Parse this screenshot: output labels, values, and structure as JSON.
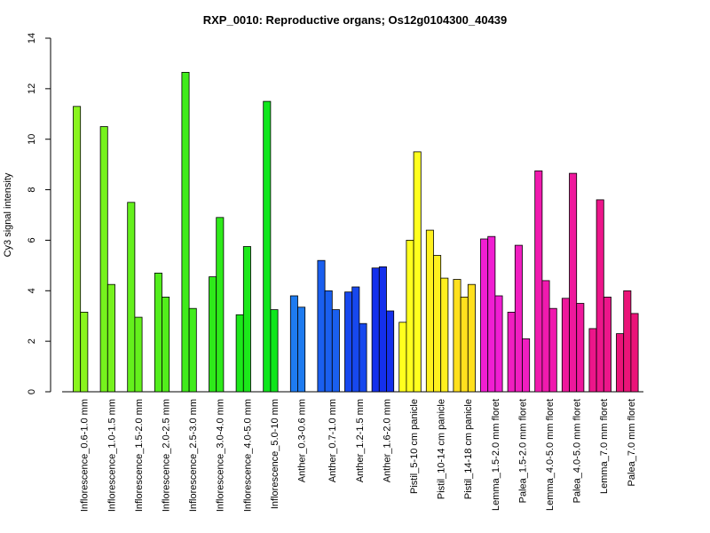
{
  "chart_data": {
    "type": "bar",
    "title": "RXP_0010: Reproductive organs; Os12g0104300_40439",
    "ylabel": "Cy3 signal intensity",
    "xlabel": "",
    "ylim": [
      0,
      14
    ],
    "yticks": [
      0,
      2,
      4,
      6,
      8,
      10,
      12,
      14
    ],
    "grid": false,
    "legend": "none",
    "categories": [
      "Inflorescence_0.6-1.0 mm",
      "Inflorescence_1.0-1.5 mm",
      "Inflorescence_1.5-2.0 mm",
      "Inflorescence_2.0-2.5 mm",
      "Inflorescence_2.5-3.0 mm",
      "Inflorescence_3.0-4.0 mm",
      "Inflorescence_4.0-5.0 mm",
      "Inflorescence_5.0-10 mm",
      "Anther_0.3-0.6 mm",
      "Anther_0.7-1.0 mm",
      "Anther_1.2-1.5 mm",
      "Anther_1.6-2.0 mm",
      "Pistil_5-10 cm panicle",
      "Pistil_10-14 cm panicle",
      "Pistil_14-18 cm panicle",
      "Lemma_1.5-2.0 mm floret",
      "Palea_1.5-2.0 mm floret",
      "Lemma_4.0-5.0 mm floret",
      "Palea_4.0-5.0 mm floret",
      "Lemma_7.0 mm floret",
      "Palea_7.0 mm floret"
    ],
    "groups": [
      {
        "values": [
          11.3,
          3.15
        ],
        "colors": [
          "#8AF51E",
          "#8AF51E"
        ]
      },
      {
        "values": [
          10.5,
          4.25
        ],
        "colors": [
          "#76F21D",
          "#76F21D"
        ]
      },
      {
        "values": [
          7.5,
          2.95
        ],
        "colors": [
          "#64F01C",
          "#64F01C"
        ]
      },
      {
        "values": [
          4.7,
          3.75
        ],
        "colors": [
          "#52EE1C",
          "#52EE1C"
        ]
      },
      {
        "values": [
          12.65,
          3.3
        ],
        "colors": [
          "#40EC1B",
          "#40EC1B"
        ]
      },
      {
        "values": [
          4.55,
          6.9
        ],
        "colors": [
          "#2EEA1A",
          "#2EEA1A"
        ]
      },
      {
        "values": [
          3.05,
          5.75
        ],
        "colors": [
          "#1CE81A",
          "#1CE81A"
        ]
      },
      {
        "values": [
          11.5,
          3.25
        ],
        "colors": [
          "#0FE61C",
          "#0FE61C"
        ]
      },
      {
        "values": [
          3.8,
          3.35
        ],
        "colors": [
          "#1E7BF0",
          "#1E7BF0"
        ]
      },
      {
        "values": [
          5.2,
          4.0,
          3.25
        ],
        "colors": [
          "#1A5FEF",
          "#1A5FEF",
          "#1A5FEF"
        ]
      },
      {
        "values": [
          3.95,
          4.15,
          2.7
        ],
        "colors": [
          "#1748EE",
          "#1748EE",
          "#1748EE"
        ]
      },
      {
        "values": [
          4.9,
          4.95,
          3.2
        ],
        "colors": [
          "#1430EC",
          "#1430EC",
          "#1430EC"
        ]
      },
      {
        "values": [
          2.75,
          6.0,
          9.5
        ],
        "colors": [
          "#FFFF1E",
          "#FFFF1E",
          "#FFFF1E"
        ]
      },
      {
        "values": [
          6.4,
          5.4,
          4.5
        ],
        "colors": [
          "#FFF01E",
          "#FFF01E",
          "#FFF01E"
        ]
      },
      {
        "values": [
          4.45,
          3.75,
          4.25
        ],
        "colors": [
          "#FFE01E",
          "#FFE01E",
          "#FFE01E"
        ]
      },
      {
        "values": [
          6.05,
          6.15,
          3.8
        ],
        "colors": [
          "#F01ED2",
          "#F01ED2",
          "#F01ED2"
        ]
      },
      {
        "values": [
          3.15,
          5.8,
          2.1
        ],
        "colors": [
          "#F01EC0",
          "#F01EC0",
          "#F01EC0"
        ]
      },
      {
        "values": [
          8.75,
          4.4,
          3.3
        ],
        "colors": [
          "#F01AAE",
          "#F01AAE",
          "#F01AAE"
        ]
      },
      {
        "values": [
          3.7,
          8.65,
          3.5
        ],
        "colors": [
          "#EE189C",
          "#EE189C",
          "#EE189C"
        ]
      },
      {
        "values": [
          2.5,
          7.6,
          3.75
        ],
        "colors": [
          "#EC168A",
          "#EC168A",
          "#EC168A"
        ]
      },
      {
        "values": [
          2.3,
          4.0,
          3.1
        ],
        "colors": [
          "#EA1478",
          "#EA1478",
          "#EA1478"
        ]
      }
    ]
  }
}
